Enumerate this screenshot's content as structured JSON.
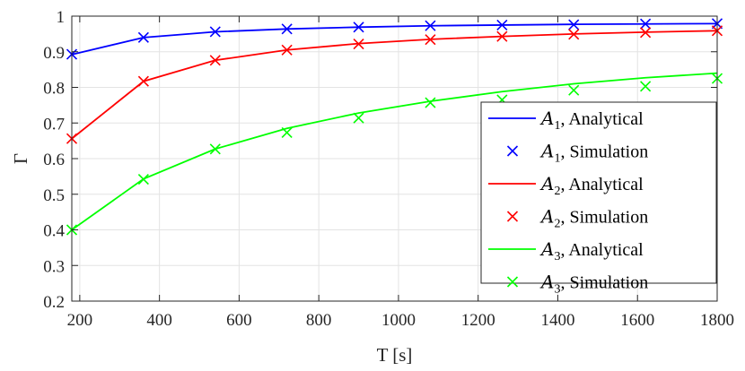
{
  "chart_data": {
    "type": "line",
    "xlabel": "T [s]",
    "ylabel": "Γ",
    "xlim": [
      180,
      1800
    ],
    "ylim": [
      0.2,
      1
    ],
    "xticks": [
      200,
      400,
      600,
      800,
      1000,
      1200,
      1400,
      1600,
      1800
    ],
    "yticks": [
      0.2,
      0.3,
      0.4,
      0.5,
      0.6,
      0.7,
      0.8,
      0.9,
      1
    ],
    "grid": true,
    "legend_position": "right",
    "x": [
      180,
      360,
      540,
      720,
      900,
      1080,
      1260,
      1440,
      1620,
      1800
    ],
    "series": [
      {
        "name": "A1, Analytical",
        "name_letter": "A",
        "name_subscript": "1",
        "name_suffix": ", Analytical",
        "style": "line",
        "color": "#0000ff",
        "values": [
          0.892,
          0.94,
          0.956,
          0.964,
          0.969,
          0.973,
          0.975,
          0.977,
          0.978,
          0.979
        ]
      },
      {
        "name": "A1, Simulation",
        "name_letter": "A",
        "name_subscript": "1",
        "name_suffix": ", Simulation",
        "style": "marker",
        "color": "#0000ff",
        "values": [
          0.893,
          0.94,
          0.956,
          0.964,
          0.969,
          0.973,
          0.975,
          0.976,
          0.978,
          0.979
        ]
      },
      {
        "name": "A2, Analytical",
        "name_letter": "A",
        "name_subscript": "2",
        "name_suffix": ", Analytical",
        "style": "line",
        "color": "#ff0000",
        "values": [
          0.656,
          0.817,
          0.876,
          0.905,
          0.923,
          0.935,
          0.943,
          0.95,
          0.955,
          0.959
        ]
      },
      {
        "name": "A2, Simulation",
        "name_letter": "A",
        "name_subscript": "2",
        "name_suffix": ", Simulation",
        "style": "marker",
        "color": "#ff0000",
        "values": [
          0.656,
          0.817,
          0.876,
          0.905,
          0.922,
          0.934,
          0.943,
          0.949,
          0.954,
          0.959
        ]
      },
      {
        "name": "A3, Analytical",
        "name_letter": "A",
        "name_subscript": "3",
        "name_suffix": ", Analytical",
        "style": "line",
        "color": "#00ff00",
        "values": [
          0.4,
          0.543,
          0.627,
          0.685,
          0.728,
          0.761,
          0.788,
          0.81,
          0.827,
          0.84
        ]
      },
      {
        "name": "A3, Simulation",
        "name_letter": "A",
        "name_subscript": "3",
        "name_suffix": ", Simulation",
        "style": "marker",
        "color": "#00ff00",
        "values": [
          0.4,
          0.542,
          0.627,
          0.673,
          0.714,
          0.757,
          0.765,
          0.792,
          0.803,
          0.825
        ]
      }
    ]
  }
}
